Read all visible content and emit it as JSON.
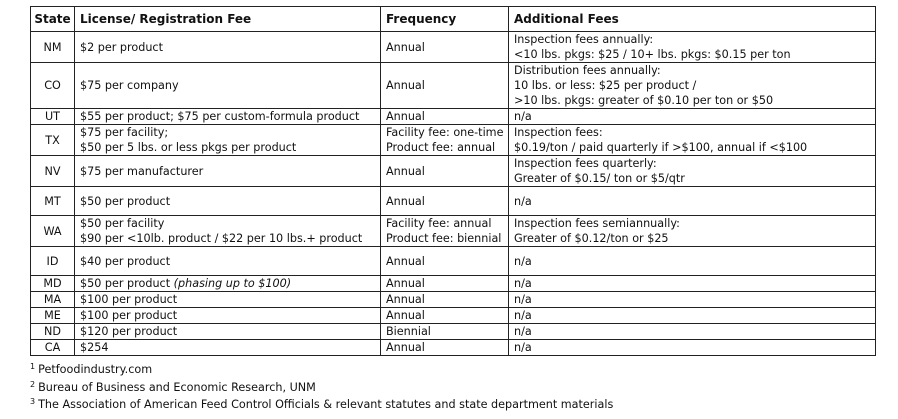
{
  "table": {
    "headers": {
      "state": "State",
      "fee": "License/ Registration Fee",
      "frequency": "Frequency",
      "additional": "Additional Fees"
    },
    "rows": [
      {
        "state": "NM",
        "fee": [
          "$2 per product"
        ],
        "frequency": [
          "Annual"
        ],
        "additional": [
          "Inspection fees annually:",
          "<10 lbs. pkgs: $25  /  10+ lbs. pkgs: $0.15 per ton"
        ]
      },
      {
        "state": "CO",
        "fee": [
          "$75 per company"
        ],
        "frequency": [
          "Annual"
        ],
        "additional": [
          "Distribution fees annually:",
          "10 lbs. or less: $25 per product  /",
          ">10 lbs. pkgs: greater of $0.10 per ton or $50"
        ]
      },
      {
        "state": "UT",
        "fee": [
          "$55 per product; $75 per custom-formula product"
        ],
        "frequency": [
          "Annual"
        ],
        "additional": [
          "n/a"
        ]
      },
      {
        "state": "TX",
        "fee": [
          "$75 per facility;",
          "$50 per 5 lbs. or less pkgs per product"
        ],
        "frequency": [
          "Facility fee: one-time",
          "Product fee: annual"
        ],
        "additional": [
          "Inspection fees:",
          "$0.19/ton / paid quarterly if >$100, annual if <$100"
        ]
      },
      {
        "state": "NV",
        "fee": [
          "$75 per manufacturer"
        ],
        "frequency": [
          "Annual"
        ],
        "additional": [
          "Inspection fees quarterly:",
          "Greater of $0.15/ ton or $5/qtr"
        ]
      },
      {
        "state": "MT",
        "fee": [
          "$50 per product"
        ],
        "frequency": [
          "Annual"
        ],
        "additional": [
          "n/a"
        ]
      },
      {
        "state": "WA",
        "fee": [
          "$50 per facility",
          "$90 per <10lb. product / $22 per 10 lbs.+ product"
        ],
        "frequency": [
          "Facility fee: annual",
          "Product fee: biennial"
        ],
        "additional": [
          "Inspection fees semiannually:",
          "Greater of $0.12/ton or $25"
        ]
      },
      {
        "state": "ID",
        "fee": [
          "$40 per product"
        ],
        "frequency": [
          "Annual"
        ],
        "additional": [
          "n/a"
        ]
      },
      {
        "state": "MD",
        "fee": [
          "$50 per product"
        ],
        "fee_note": "(phasing up to $100)",
        "frequency": [
          "Annual"
        ],
        "additional": [
          "n/a"
        ]
      },
      {
        "state": "MA",
        "fee": [
          "$100 per product"
        ],
        "frequency": [
          "Annual"
        ],
        "additional": [
          "n/a"
        ]
      },
      {
        "state": "ME",
        "fee": [
          "$100 per product"
        ],
        "frequency": [
          "Annual"
        ],
        "additional": [
          "n/a"
        ]
      },
      {
        "state": "ND",
        "fee": [
          "$120 per product"
        ],
        "frequency": [
          "Biennial"
        ],
        "additional": [
          "n/a"
        ]
      },
      {
        "state": "CA",
        "fee": [
          "$254"
        ],
        "frequency": [
          "Annual"
        ],
        "additional": [
          "n/a"
        ]
      }
    ]
  },
  "footnotes": [
    {
      "mark": "1",
      "text": "Petfoodindustry.com"
    },
    {
      "mark": "2",
      "text": "Bureau of Business and Economic Research, UNM"
    },
    {
      "mark": "3",
      "text": "The Association of American Feed Control Officials & relevant statutes and state department materials"
    }
  ]
}
